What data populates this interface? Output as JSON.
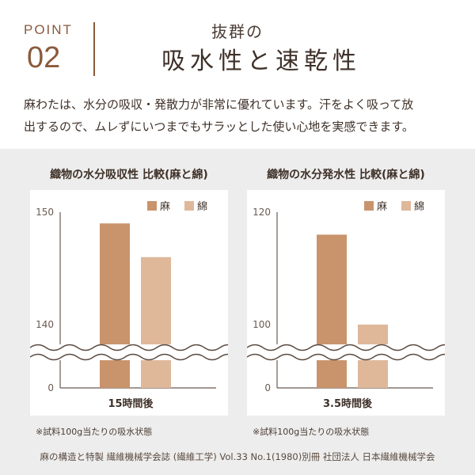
{
  "header": {
    "point_label": "POINT",
    "point_number": "02",
    "subtitle": "抜群の",
    "title": "吸水性と速乾性"
  },
  "description": {
    "line1": "麻わたは、水分の吸収・発散力が非常に優れています。汗をよく吸って放",
    "line2": "出するので、ムレずにいつまでもサラッとした使い心地を実感できます。"
  },
  "colors": {
    "asa": "#c9946c",
    "men": "#dfb89a",
    "accent": "#8a5a3c",
    "panel_bg": "#ededed"
  },
  "chart_data": [
    {
      "type": "bar",
      "title": "織物の水分吸収性 比較(麻と綿)",
      "categories": [
        "15時間後"
      ],
      "series": [
        {
          "name": "麻",
          "values": [
            149
          ]
        },
        {
          "name": "綿",
          "values": [
            146
          ]
        }
      ],
      "ytick_labels": [
        "150",
        "140",
        "0"
      ],
      "ytick_values": [
        150,
        140,
        0
      ],
      "broken_axis": true,
      "ylim_upper": [
        140,
        150
      ],
      "legend": "top-right",
      "note": "※試料100g当たりの吸水状態"
    },
    {
      "type": "bar",
      "title": "織物の水分発水性 比較(麻と綿)",
      "categories": [
        "3.5時間後"
      ],
      "series": [
        {
          "name": "麻",
          "values": [
            116
          ]
        },
        {
          "name": "綿",
          "values": [
            100
          ]
        }
      ],
      "ytick_labels": [
        "120",
        "100",
        "0"
      ],
      "ytick_values": [
        120,
        100,
        0
      ],
      "broken_axis": true,
      "ylim_upper": [
        100,
        120
      ],
      "legend": "top-right",
      "note": "※試料100g当たりの吸水状態"
    }
  ],
  "footer": {
    "credit": "麻の構造と特製 繊維機械学会誌 (繊維工学) Vol.33 No.1(1980)別冊 社団法人 日本繊維機械学会"
  }
}
